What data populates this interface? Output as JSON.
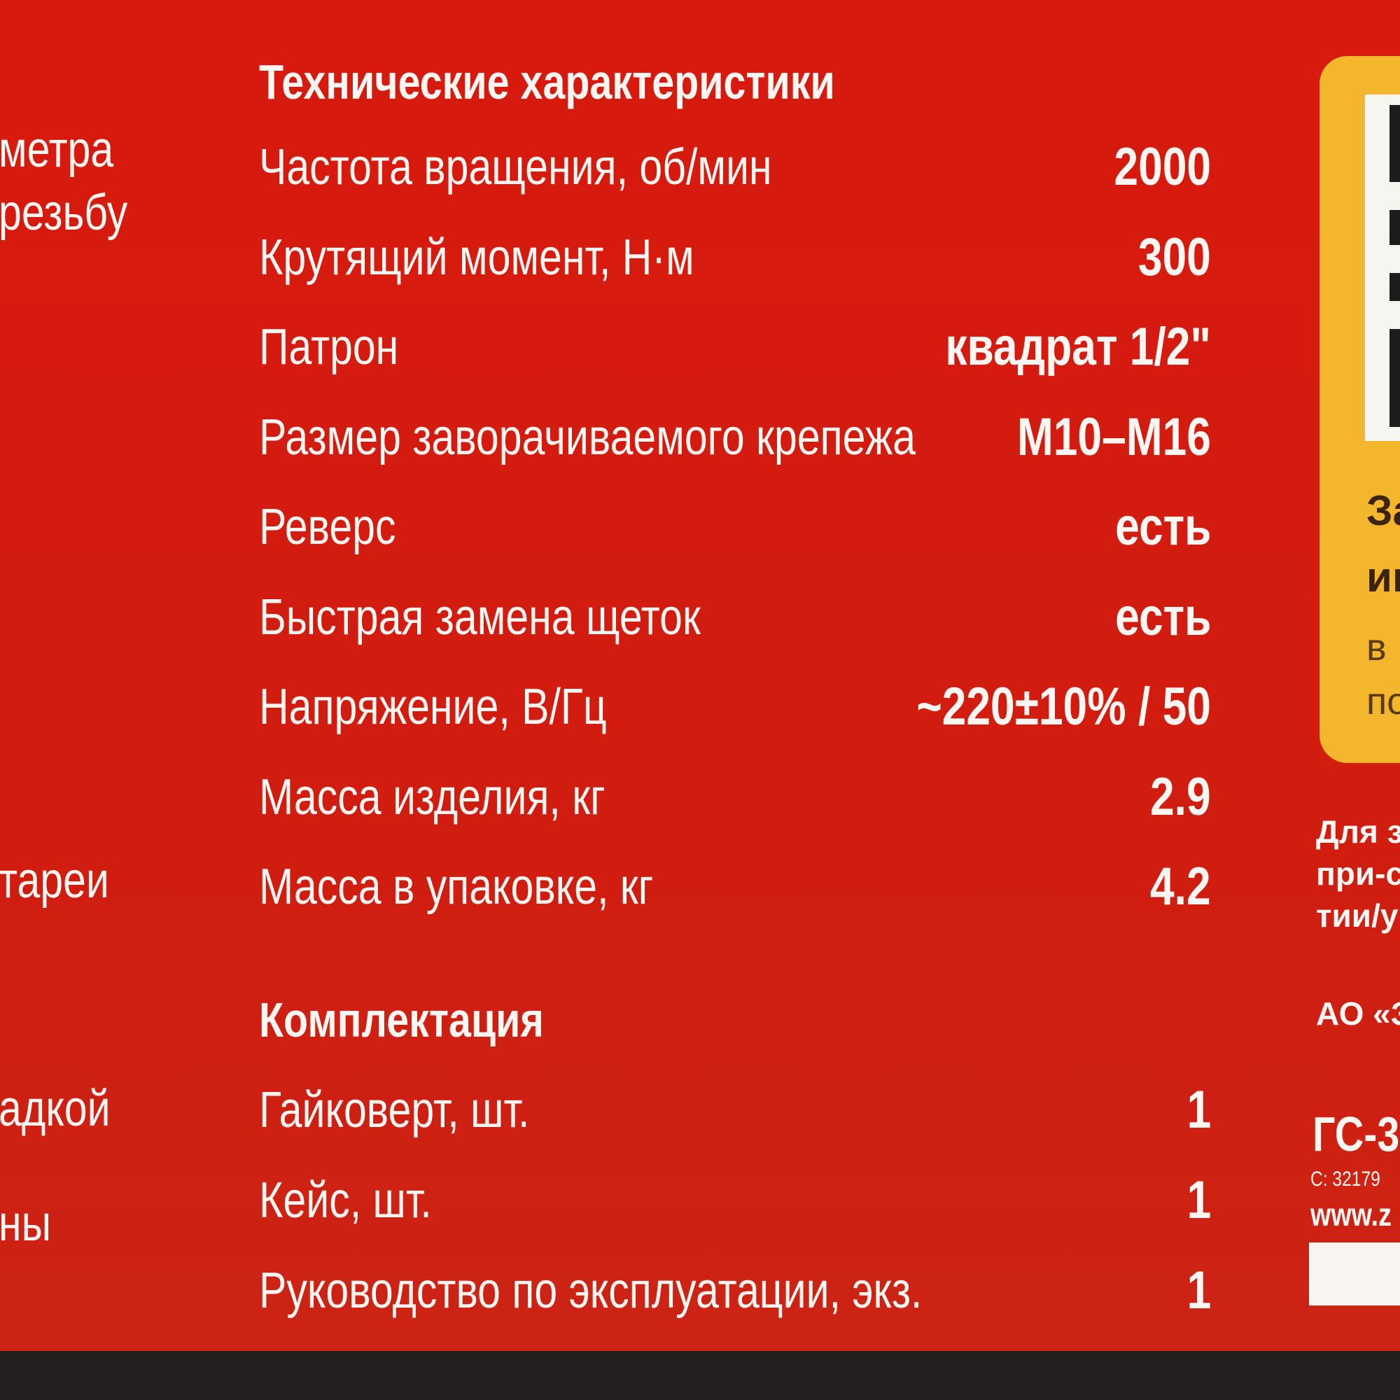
{
  "left_fragments": [
    "метра",
    "резьбу",
    "тареи",
    "адкой",
    "ны"
  ],
  "specs": {
    "heading": "Технические характеристики",
    "rows": [
      {
        "label": "Частота вращения, об/мин",
        "value": "2000"
      },
      {
        "label": "Крутящий момент, Н·м",
        "value": "300"
      },
      {
        "label": "Патрон",
        "value": "квадрат 1/2\""
      },
      {
        "label": "Размер заворачиваемого крепежа",
        "value": "М10–М16"
      },
      {
        "label": "Реверс",
        "value": "есть"
      },
      {
        "label": "Быстрая замена щеток",
        "value": "есть"
      },
      {
        "label": "Напряжение, В/Гц",
        "value": "~220±10% / 50"
      },
      {
        "label": "Масса изделия, кг",
        "value": "2.9"
      },
      {
        "label": "Масса в упаковке, кг",
        "value": "4.2"
      }
    ]
  },
  "kit": {
    "heading": "Комплектация",
    "rows": [
      {
        "label": "Гайковерт, шт.",
        "value": "1"
      },
      {
        "label": "Кейс, шт.",
        "value": "1"
      },
      {
        "label": "Руководство по эксплуатации, экз.",
        "value": "1"
      }
    ]
  },
  "side_panel": {
    "lines_bold": [
      "За",
      "ин"
    ],
    "lines": [
      "в",
      "по"
    ]
  },
  "right_text": {
    "lines": [
      "Для з",
      "при-с",
      "тии/у"
    ],
    "company": "АО «З",
    "model": "ГС-3",
    "code": "С: 32179",
    "website": "www.z"
  },
  "colors": {
    "background": "#d41c10",
    "panel": "#f3b62c",
    "text": "#fbf6f2",
    "strip": "#231f1f"
  }
}
